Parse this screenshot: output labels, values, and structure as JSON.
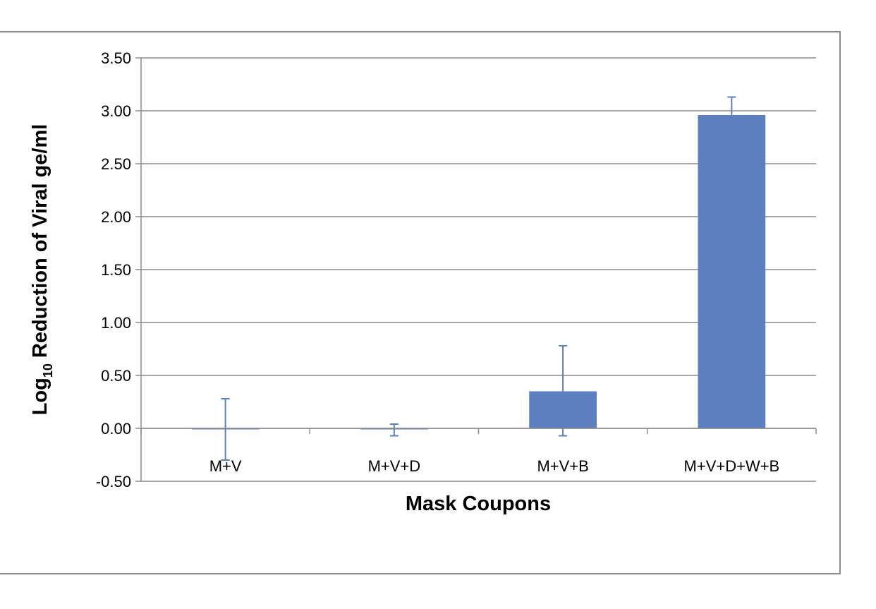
{
  "chart_data": {
    "type": "bar",
    "title": "",
    "xlabel": "Mask Coupons",
    "ylabel": {
      "main": "Log",
      "subscript": "10",
      "rest": " Reduction of Viral ge/ml"
    },
    "categories": [
      "M+V",
      "M+V+D",
      "M+V+B",
      "M+V+D+W+B"
    ],
    "series": [
      {
        "values": [
          -0.01,
          -0.01,
          0.35,
          2.96
        ],
        "error_low": [
          0.29,
          0.06,
          0.42,
          0.0
        ],
        "error_high": [
          0.29,
          0.05,
          0.43,
          0.17
        ],
        "color": "#5b7fbf"
      }
    ],
    "ylim": [
      -0.5,
      3.5
    ],
    "yticks": [
      "-0.50",
      "0.00",
      "0.50",
      "1.00",
      "1.50",
      "2.00",
      "2.50",
      "3.00",
      "3.50"
    ],
    "ytick_values": [
      -0.5,
      0,
      0.5,
      1,
      1.5,
      2,
      2.5,
      3,
      3.5
    ],
    "grid": true,
    "legend": "none",
    "colors": {
      "bar": "#5b7fbf",
      "error": "#5b7fbf",
      "grid": "#8c8c8c",
      "axis": "#8c8c8c"
    }
  }
}
